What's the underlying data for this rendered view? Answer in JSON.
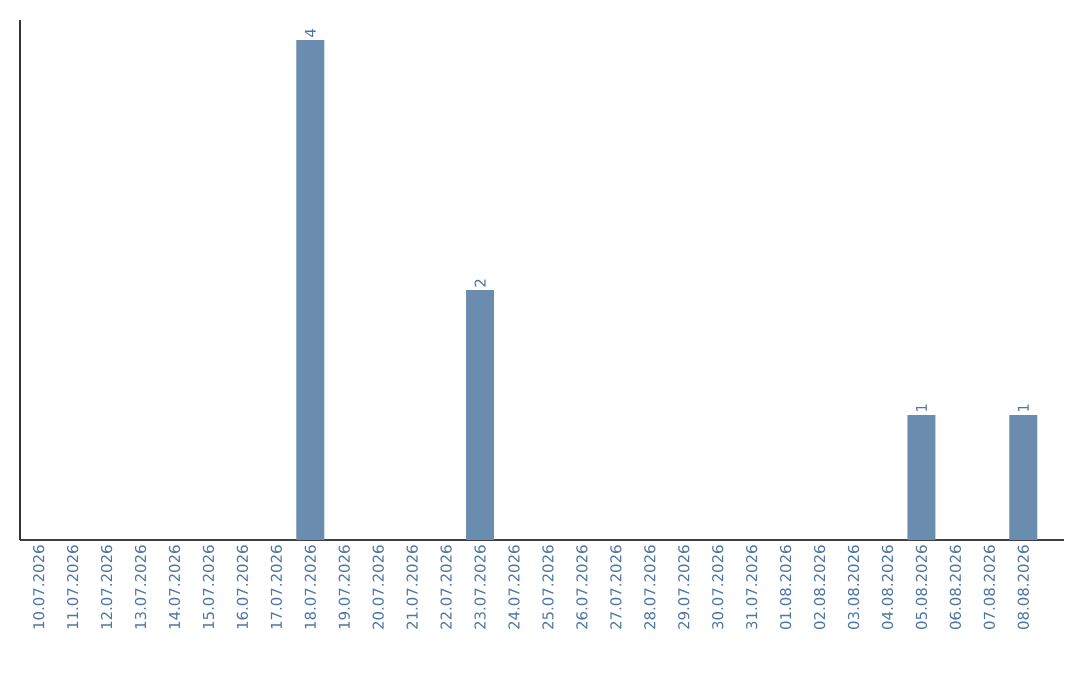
{
  "chart_data": {
    "type": "bar",
    "categories": [
      "10.07.2026",
      "11.07.2026",
      "12.07.2026",
      "13.07.2026",
      "14.07.2026",
      "15.07.2026",
      "16.07.2026",
      "17.07.2026",
      "18.07.2026",
      "19.07.2026",
      "20.07.2026",
      "21.07.2026",
      "22.07.2026",
      "23.07.2026",
      "24.07.2026",
      "25.07.2026",
      "26.07.2026",
      "27.07.2026",
      "28.07.2026",
      "29.07.2026",
      "30.07.2026",
      "31.07.2026",
      "01.08.2026",
      "02.08.2026",
      "03.08.2026",
      "04.08.2026",
      "05.08.2026",
      "06.08.2026",
      "07.08.2026",
      "08.08.2026"
    ],
    "values": [
      0,
      0,
      0,
      0,
      0,
      0,
      0,
      0,
      4,
      0,
      0,
      0,
      0,
      2,
      0,
      0,
      0,
      0,
      0,
      0,
      0,
      0,
      0,
      0,
      0,
      0,
      1,
      0,
      0,
      1
    ],
    "value_labels": [
      null,
      null,
      null,
      null,
      null,
      null,
      null,
      null,
      "4",
      null,
      null,
      null,
      null,
      "2",
      null,
      null,
      null,
      null,
      null,
      null,
      null,
      null,
      null,
      null,
      null,
      null,
      "1",
      null,
      null,
      "1"
    ],
    "color": "#6a8caf"
  }
}
